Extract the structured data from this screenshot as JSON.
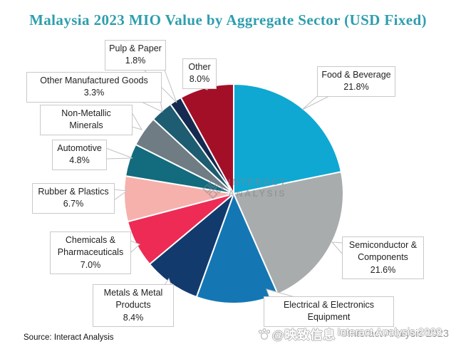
{
  "title": "Malaysia 2023 MIO Value by Aggregate Sector (USD Fixed)",
  "title_color": "#2E9EAE",
  "source": "Source: Interact Analysis",
  "watermarks": {
    "center_logo_line1": "INTERACT",
    "center_logo_line2": "ANALYSIS",
    "bottom_right_cn": "@映致信息",
    "bottom_right_en": "©Interact Analysis 2023",
    "bottom_right_en_overlay": "Interact Analysis 2023"
  },
  "chart_data": {
    "type": "pie",
    "title": "Malaysia 2023 MIO Value by Aggregate Sector (USD Fixed)",
    "unit": "percent",
    "start_angle_deg": 0,
    "direction": "clockwise",
    "legend_position": "callout-labels",
    "series": [
      {
        "label": "Food & Beverage",
        "value": 21.8,
        "pct_label": "21.8%",
        "color": "#0FA8D2"
      },
      {
        "label": "Semiconductor & Components",
        "value": 21.6,
        "pct_label": "21.6%",
        "color": "#A9ACAC"
      },
      {
        "label": "Electrical & Electronics Equipment",
        "value": 12.1,
        "pct_label": "",
        "color": "#1477B4",
        "value_estimated": true
      },
      {
        "label": "Metals & Metal Products",
        "value": 8.4,
        "pct_label": "8.4%",
        "color": "#133A6D"
      },
      {
        "label": "Chemicals & Pharmaceuticals",
        "value": 7.0,
        "pct_label": "7.0%",
        "color": "#EE2B55"
      },
      {
        "label": "Rubber & Plastics",
        "value": 6.7,
        "pct_label": "6.7%",
        "color": "#F6B1AC"
      },
      {
        "label": "Automotive",
        "value": 4.8,
        "pct_label": "4.8%",
        "color": "#136B7E"
      },
      {
        "label": "Non-Metallic Minerals",
        "value": 4.5,
        "pct_label": "",
        "color": "#6F7C83",
        "value_estimated": true
      },
      {
        "label": "Other Manufactured Goods",
        "value": 3.3,
        "pct_label": "3.3%",
        "color": "#1D5C71"
      },
      {
        "label": "Pulp & Paper",
        "value": 1.8,
        "pct_label": "1.8%",
        "color": "#152A50"
      },
      {
        "label": "Other",
        "value": 8.0,
        "pct_label": "8.0%",
        "color": "#A40F28"
      }
    ]
  }
}
